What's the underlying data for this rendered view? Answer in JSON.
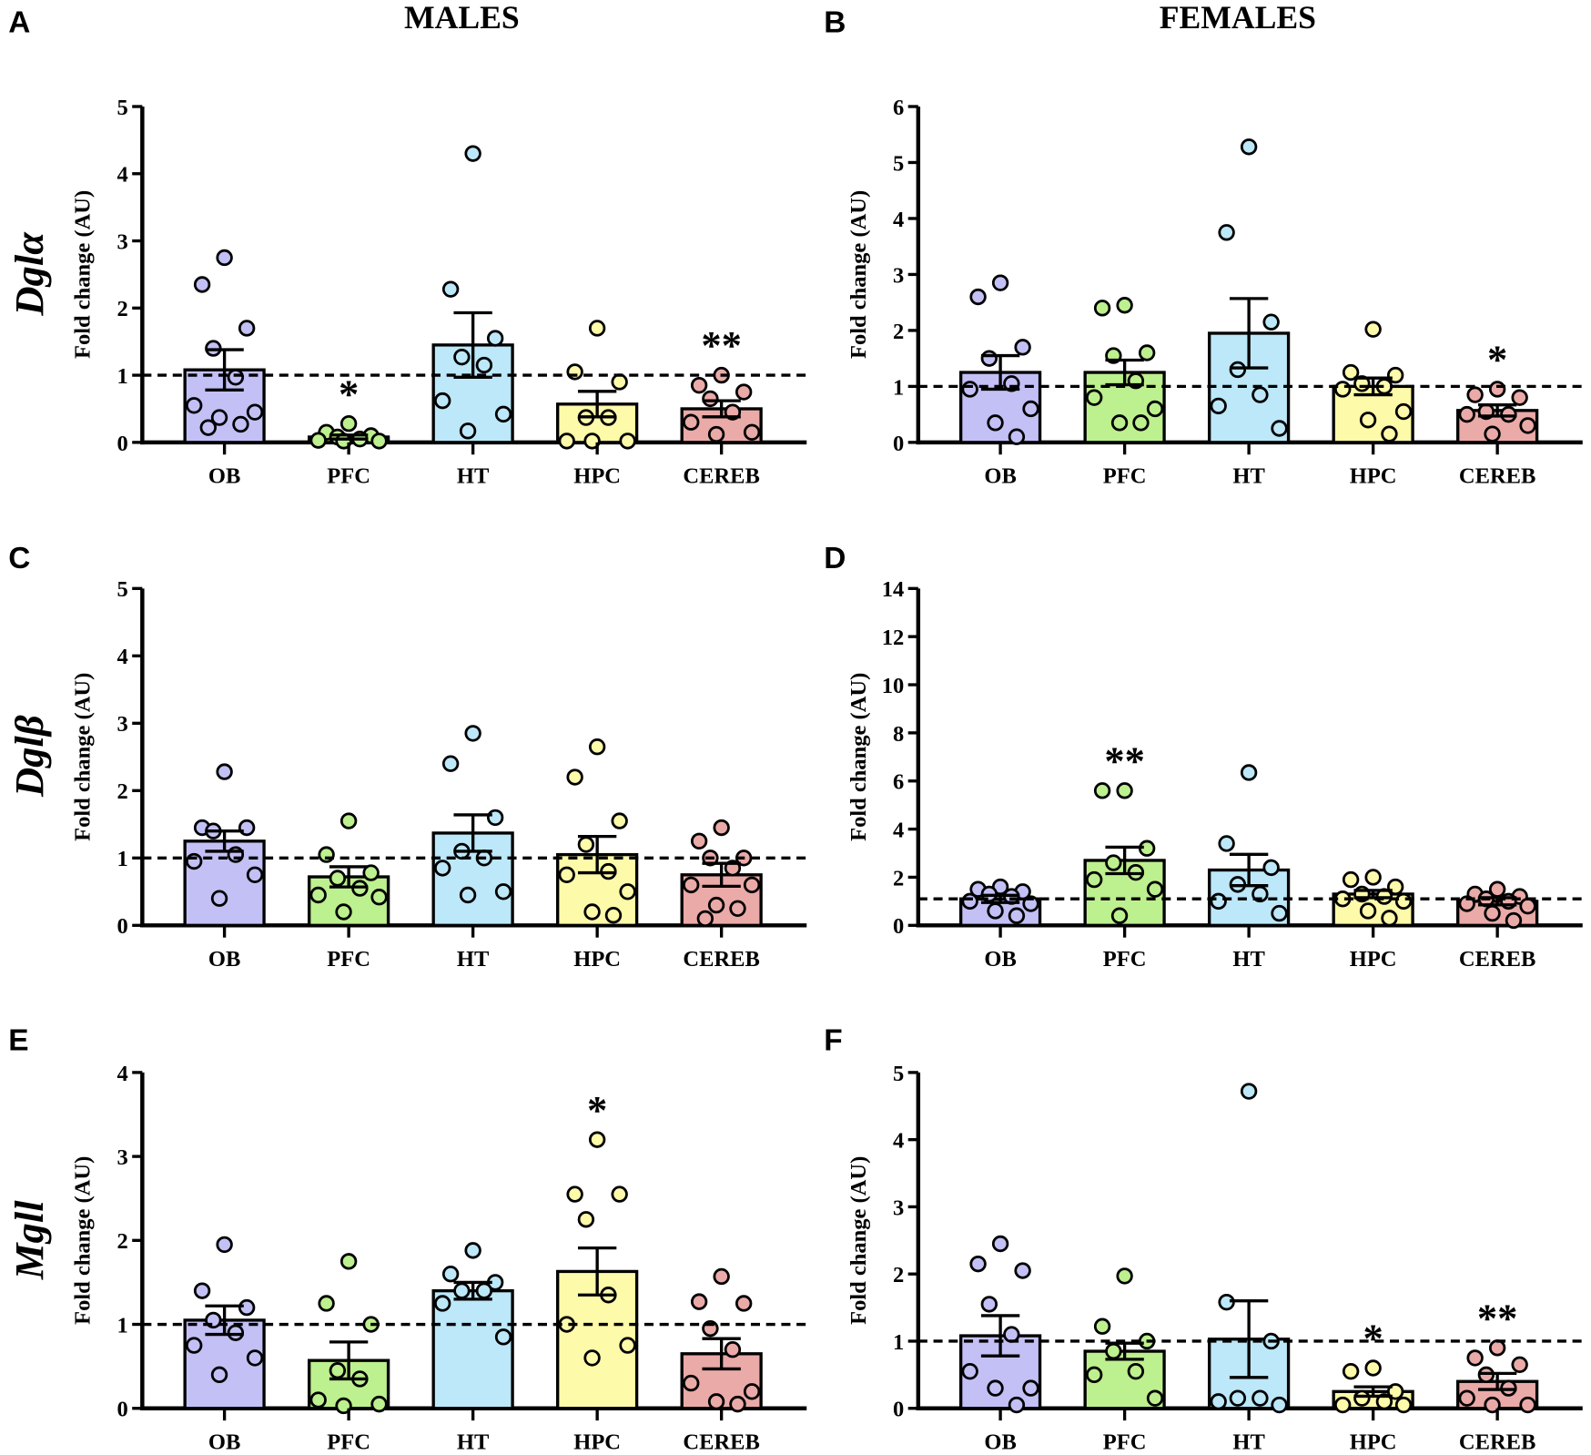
{
  "column_titles": [
    "MALES",
    "FEMALES"
  ],
  "row_genes": [
    "Dglα",
    "Dglβ",
    "Mgll"
  ],
  "colors": {
    "OB": "#c3c0f6",
    "PFC": "#bdf08e",
    "HT": "#bce8f9",
    "HPC": "#fdfaaa",
    "CEREB": "#eaaaa8"
  },
  "chart_data": [
    {
      "panel": "A",
      "type": "bar",
      "gene": "Dglα",
      "sex": "MALES",
      "ylabel": "Fold change (AU)",
      "ylim": [
        0,
        5
      ],
      "yticks": [
        0,
        1,
        2,
        3,
        4,
        5
      ],
      "reference_line": 1,
      "categories": [
        "OB",
        "PFC",
        "HT",
        "HPC",
        "CEREB"
      ],
      "means": [
        1.08,
        0.08,
        1.45,
        0.57,
        0.5
      ],
      "sem": [
        0.3,
        0.03,
        0.48,
        0.19,
        0.12
      ],
      "significance": [
        "",
        "*",
        "",
        "",
        "**"
      ],
      "points": [
        [
          2.75,
          2.35,
          1.7,
          1.4,
          0.97,
          0.55,
          0.45,
          0.37,
          0.27,
          0.22
        ],
        [
          0.28,
          0.15,
          0.1,
          0.08,
          0.05,
          0.03,
          0.02,
          0.02
        ],
        [
          4.3,
          2.28,
          1.55,
          1.27,
          1.15,
          0.62,
          0.42,
          0.17
        ],
        [
          1.7,
          1.05,
          0.9,
          0.37,
          0.37,
          0.02,
          0.02,
          0.02
        ],
        [
          1.0,
          0.85,
          0.75,
          0.65,
          0.45,
          0.3,
          0.15,
          0.12
        ]
      ]
    },
    {
      "panel": "B",
      "type": "bar",
      "gene": "Dglα",
      "sex": "FEMALES",
      "ylabel": "Fold change (AU)",
      "ylim": [
        0,
        6
      ],
      "yticks": [
        0,
        1,
        2,
        3,
        4,
        5,
        6
      ],
      "reference_line": 1,
      "categories": [
        "OB",
        "PFC",
        "HT",
        "HPC",
        "CEREB"
      ],
      "means": [
        1.25,
        1.25,
        1.95,
        1.0,
        0.57
      ],
      "sem": [
        0.3,
        0.22,
        0.62,
        0.15,
        0.1
      ],
      "significance": [
        "",
        "",
        "",
        "",
        "*"
      ],
      "points": [
        [
          2.85,
          2.6,
          1.7,
          1.5,
          1.05,
          0.95,
          0.6,
          0.35,
          0.1
        ],
        [
          2.45,
          2.4,
          1.6,
          1.55,
          1.1,
          0.8,
          0.6,
          0.35,
          0.35
        ],
        [
          5.28,
          3.75,
          2.15,
          1.3,
          0.85,
          0.65,
          0.25
        ],
        [
          2.02,
          1.25,
          1.2,
          1.05,
          1.0,
          0.95,
          0.55,
          0.4,
          0.15
        ],
        [
          0.95,
          0.85,
          0.8,
          0.55,
          0.5,
          0.5,
          0.3,
          0.15
        ]
      ]
    },
    {
      "panel": "C",
      "type": "bar",
      "gene": "Dglβ",
      "sex": "MALES",
      "ylabel": "Fold change (AU)",
      "ylim": [
        0,
        5
      ],
      "yticks": [
        0,
        1,
        2,
        3,
        4,
        5
      ],
      "reference_line": 1,
      "categories": [
        "OB",
        "PFC",
        "HT",
        "HPC",
        "CEREB"
      ],
      "means": [
        1.25,
        0.72,
        1.37,
        1.05,
        0.75
      ],
      "sem": [
        0.15,
        0.15,
        0.27,
        0.27,
        0.17
      ],
      "significance": [
        "",
        "",
        "",
        "",
        ""
      ],
      "points": [
        [
          2.28,
          1.45,
          1.45,
          1.4,
          1.05,
          0.95,
          0.75,
          0.4
        ],
        [
          1.55,
          1.05,
          0.78,
          0.7,
          0.55,
          0.45,
          0.42,
          0.2
        ],
        [
          2.85,
          2.4,
          1.6,
          1.1,
          1.0,
          0.85,
          0.5,
          0.45
        ],
        [
          2.65,
          2.2,
          1.55,
          1.2,
          0.8,
          0.75,
          0.5,
          0.2,
          0.15
        ],
        [
          1.45,
          1.25,
          1.0,
          1.0,
          0.85,
          0.6,
          0.6,
          0.3,
          0.25,
          0.1
        ]
      ]
    },
    {
      "panel": "D",
      "type": "bar",
      "gene": "Dglβ",
      "sex": "FEMALES",
      "ylabel": "Fold change (AU)",
      "ylim": [
        0,
        14
      ],
      "yticks": [
        0,
        2,
        4,
        6,
        8,
        10,
        12,
        14
      ],
      "reference_line": 1.1,
      "categories": [
        "OB",
        "PFC",
        "HT",
        "HPC",
        "CEREB"
      ],
      "means": [
        1.1,
        2.7,
        2.3,
        1.3,
        1.0
      ],
      "sem": [
        0.15,
        0.55,
        0.65,
        0.15,
        0.15
      ],
      "significance": [
        "",
        "**",
        "",
        "",
        ""
      ],
      "points": [
        [
          1.6,
          1.5,
          1.4,
          1.3,
          1.2,
          1.0,
          0.9,
          0.6,
          0.4
        ],
        [
          5.6,
          5.6,
          3.2,
          2.6,
          2.2,
          1.9,
          1.5,
          0.4
        ],
        [
          6.35,
          3.4,
          2.4,
          1.7,
          1.3,
          1.0,
          0.5
        ],
        [
          2.0,
          1.9,
          1.6,
          1.3,
          1.2,
          1.1,
          1.0,
          0.6,
          0.3
        ],
        [
          1.5,
          1.3,
          1.2,
          1.1,
          1.0,
          0.9,
          0.8,
          0.5,
          0.2
        ]
      ]
    },
    {
      "panel": "E",
      "type": "bar",
      "gene": "Mgll",
      "sex": "MALES",
      "ylabel": "Fold change (AU)",
      "ylim": [
        0,
        4
      ],
      "yticks": [
        0,
        1,
        2,
        3,
        4
      ],
      "reference_line": 1,
      "categories": [
        "OB",
        "PFC",
        "HT",
        "HPC",
        "CEREB"
      ],
      "means": [
        1.05,
        0.57,
        1.4,
        1.63,
        0.65
      ],
      "sem": [
        0.17,
        0.22,
        0.1,
        0.28,
        0.18
      ],
      "significance": [
        "",
        "",
        "",
        "*",
        ""
      ],
      "points": [
        [
          1.95,
          1.4,
          1.2,
          1.05,
          0.9,
          0.75,
          0.6,
          0.4
        ],
        [
          1.75,
          1.25,
          1.0,
          0.45,
          0.35,
          0.1,
          0.05,
          0.03
        ],
        [
          1.88,
          1.6,
          1.5,
          1.4,
          1.4,
          1.25,
          0.85
        ],
        [
          3.2,
          2.55,
          2.55,
          2.25,
          1.35,
          1.0,
          0.75,
          0.6
        ],
        [
          1.57,
          1.27,
          1.25,
          0.95,
          0.7,
          0.3,
          0.2,
          0.08,
          0.05
        ]
      ]
    },
    {
      "panel": "F",
      "type": "bar",
      "gene": "Mgll",
      "sex": "FEMALES",
      "ylabel": "Fold change (AU)",
      "ylim": [
        0,
        5
      ],
      "yticks": [
        0,
        1,
        2,
        3,
        4,
        5
      ],
      "reference_line": 1,
      "categories": [
        "OB",
        "PFC",
        "HT",
        "HPC",
        "CEREB"
      ],
      "means": [
        1.08,
        0.85,
        1.03,
        0.25,
        0.4
      ],
      "sem": [
        0.3,
        0.12,
        0.57,
        0.07,
        0.12
      ],
      "significance": [
        "",
        "",
        "",
        "*",
        "**"
      ],
      "points": [
        [
          2.45,
          2.15,
          2.05,
          1.55,
          1.1,
          0.55,
          0.3,
          0.3,
          0.05
        ],
        [
          1.97,
          1.22,
          1.0,
          0.85,
          0.55,
          0.5,
          0.15
        ],
        [
          4.72,
          1.58,
          1.0,
          0.15,
          0.15,
          0.1,
          0.05
        ],
        [
          0.6,
          0.55,
          0.25,
          0.15,
          0.1,
          0.05,
          0.05
        ],
        [
          0.9,
          0.75,
          0.65,
          0.5,
          0.3,
          0.15,
          0.05,
          0.05
        ]
      ]
    }
  ]
}
